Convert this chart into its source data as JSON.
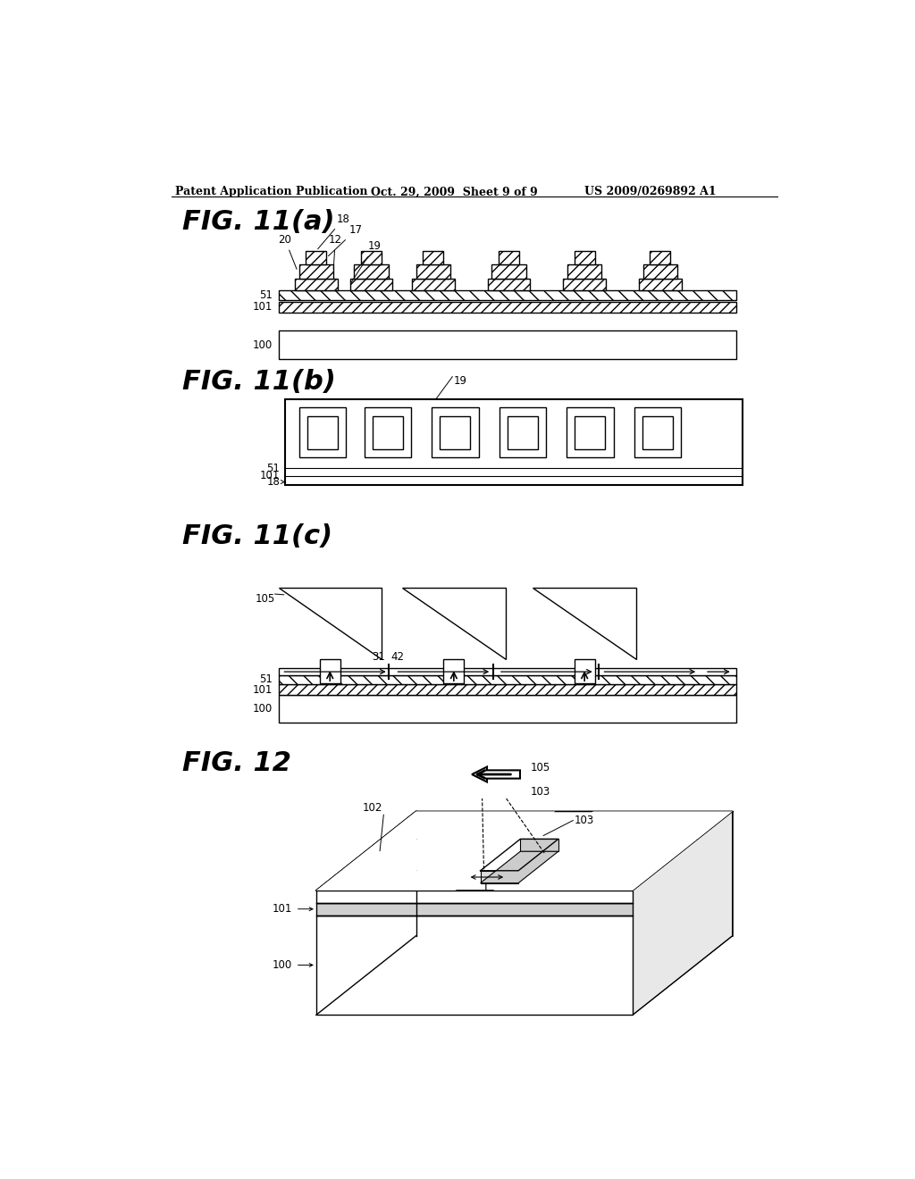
{
  "bg_color": "#ffffff",
  "header_left": "Patent Application Publication",
  "header_mid": "Oct. 29, 2009  Sheet 9 of 9",
  "header_right": "US 2009/0269892 A1",
  "line_color": "#000000"
}
